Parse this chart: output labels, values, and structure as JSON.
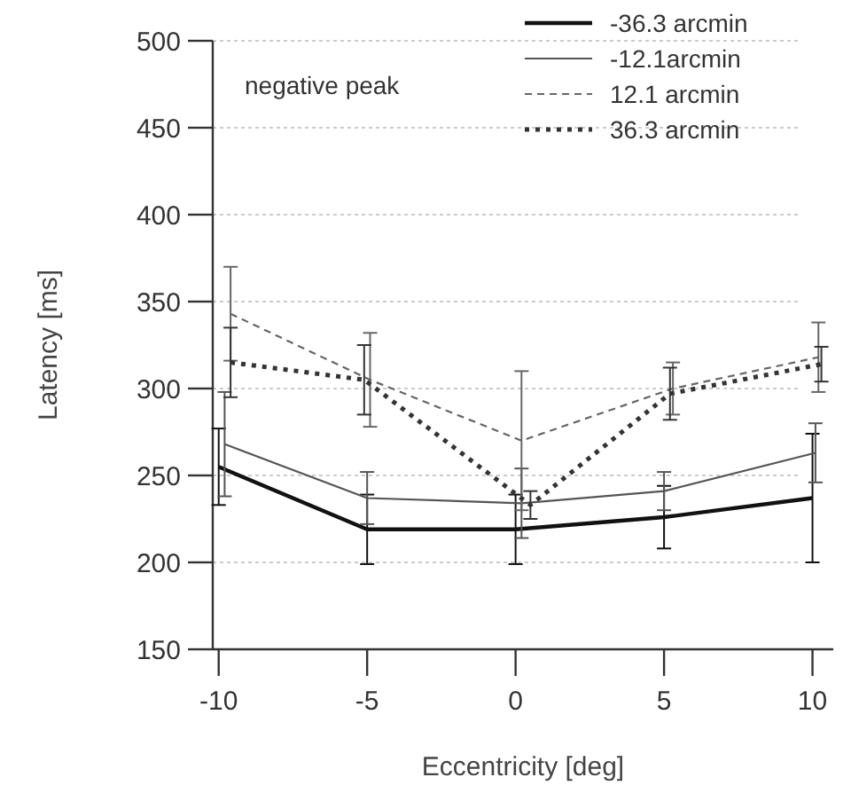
{
  "chart_data": {
    "type": "line",
    "xlabel": "Eccentricity [deg]",
    "ylabel": "Latency [ms]",
    "annotations": [
      "negative peak"
    ],
    "xlim": [
      -10.2,
      10.7
    ],
    "xticks": [
      -10,
      -5,
      0,
      5,
      10
    ],
    "ylim": [
      150,
      500
    ],
    "yticks": [
      150,
      200,
      250,
      300,
      350,
      400,
      450,
      500
    ],
    "grid": "y",
    "legend": "top right",
    "marker": "none",
    "series": [
      {
        "name": "-36.3 arcmin",
        "color": "#111111",
        "line_style": "solid",
        "x": [
          -10,
          -5,
          0,
          5,
          10
        ],
        "values": [
          255,
          219,
          219,
          226,
          237
        ],
        "errors": [
          22,
          20,
          20,
          18,
          37
        ]
      },
      {
        "name": "-12.1arcmin",
        "color": "#555555",
        "line_style": "solid",
        "x": [
          -9.8,
          -5,
          0.2,
          5,
          10.1
        ],
        "values": [
          268,
          237,
          234,
          241,
          263
        ],
        "errors": [
          30,
          15,
          20,
          11,
          17
        ]
      },
      {
        "name": "12.1 arcmin",
        "color": "#666666",
        "line_style": "dashed",
        "x": [
          -9.6,
          -4.9,
          0.2,
          5.3,
          10.2
        ],
        "values": [
          343,
          305,
          270,
          300,
          318
        ],
        "errors": [
          27,
          27,
          40,
          15,
          20
        ]
      },
      {
        "name": "36.3 arcmin",
        "color": "#333333",
        "line_style": "dotted",
        "x": [
          -9.6,
          -5.1,
          0.5,
          5.2,
          10.3
        ],
        "values": [
          315,
          305,
          233,
          297,
          314
        ],
        "errors": [
          20,
          20,
          8,
          15,
          10
        ]
      }
    ]
  }
}
